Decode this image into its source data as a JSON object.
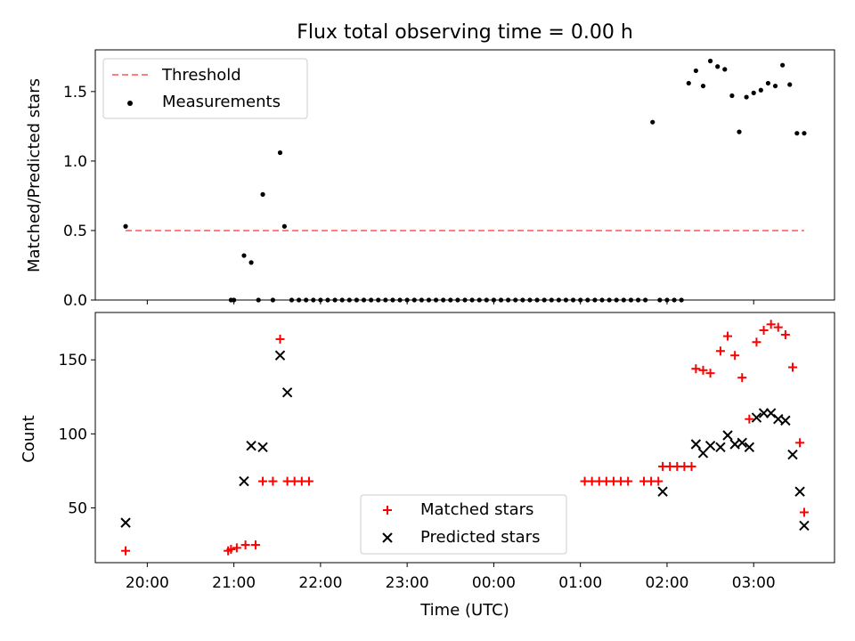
{
  "chart_data": [
    {
      "type": "scatter",
      "title": "Flux total observing time = 0.00 h",
      "xlabel": "",
      "ylabel": "Matched/Predicted stars",
      "ylim": [
        0,
        1.8
      ],
      "yticks": [
        0.0,
        0.5,
        1.0,
        1.5
      ],
      "ytick_labels": [
        "0.0",
        "0.5",
        "1.0",
        "1.5"
      ],
      "legend_position": "top-left",
      "series": [
        {
          "name": "Threshold",
          "kind": "line",
          "style": "dashed",
          "color": "#ff7f7f",
          "x": [
            "19:45",
            "03:35"
          ],
          "y": [
            0.5,
            0.5
          ]
        },
        {
          "name": "Measurements",
          "kind": "points",
          "color": "#000000",
          "x": [
            "19:45",
            "20:58",
            "21:00",
            "21:07",
            "21:12",
            "21:17",
            "21:20",
            "21:27",
            "21:32",
            "21:35",
            "21:40",
            "21:45",
            "21:50",
            "21:55",
            "22:00",
            "22:05",
            "22:10",
            "22:15",
            "22:20",
            "22:25",
            "22:30",
            "22:35",
            "22:40",
            "22:45",
            "22:50",
            "22:55",
            "23:00",
            "23:05",
            "23:10",
            "23:15",
            "23:20",
            "23:25",
            "23:30",
            "23:35",
            "23:40",
            "23:45",
            "23:50",
            "23:55",
            "00:00",
            "00:05",
            "00:10",
            "00:15",
            "00:20",
            "00:25",
            "00:30",
            "00:35",
            "00:40",
            "00:45",
            "00:50",
            "00:55",
            "01:00",
            "01:05",
            "01:10",
            "01:15",
            "01:20",
            "01:25",
            "01:30",
            "01:35",
            "01:40",
            "01:45",
            "01:50",
            "01:55",
            "02:00",
            "02:05",
            "02:10",
            "02:15",
            "02:20",
            "02:25",
            "02:30",
            "02:35",
            "02:40",
            "02:45",
            "02:50",
            "02:55",
            "03:00",
            "03:05",
            "03:10",
            "03:15",
            "03:20",
            "03:25",
            "03:30",
            "03:35"
          ],
          "y": [
            0.53,
            0.0,
            0.0,
            0.32,
            0.27,
            0.0,
            0.76,
            0.0,
            1.06,
            0.53,
            0.0,
            0.0,
            0.0,
            0.0,
            0.0,
            0.0,
            0.0,
            0.0,
            0.0,
            0.0,
            0.0,
            0.0,
            0.0,
            0.0,
            0.0,
            0.0,
            0.0,
            0.0,
            0.0,
            0.0,
            0.0,
            0.0,
            0.0,
            0.0,
            0.0,
            0.0,
            0.0,
            0.0,
            0.0,
            0.0,
            0.0,
            0.0,
            0.0,
            0.0,
            0.0,
            0.0,
            0.0,
            0.0,
            0.0,
            0.0,
            0.0,
            0.0,
            0.0,
            0.0,
            0.0,
            0.0,
            0.0,
            0.0,
            0.0,
            0.0,
            1.28,
            0.0,
            0.0,
            0.0,
            0.0,
            1.56,
            1.65,
            1.54,
            1.72,
            1.68,
            1.66,
            1.47,
            1.21,
            1.46,
            1.49,
            1.51,
            1.56,
            1.54,
            1.69,
            1.55,
            1.2,
            1.2
          ]
        }
      ]
    },
    {
      "type": "scatter",
      "title": "",
      "xlabel": "Time (UTC)",
      "ylabel": "Count",
      "ylim": [
        13,
        182
      ],
      "yticks": [
        50,
        100,
        150
      ],
      "ytick_labels": [
        "50",
        "100",
        "150"
      ],
      "xticks": [
        "20:00",
        "21:00",
        "22:00",
        "23:00",
        "00:00",
        "01:00",
        "02:00",
        "03:00"
      ],
      "legend_position": "bottom-center",
      "series": [
        {
          "name": "Matched stars",
          "marker": "+",
          "color": "#ff0000",
          "x": [
            "19:45",
            "20:56",
            "20:58",
            "21:02",
            "21:08",
            "21:15",
            "21:20",
            "21:27",
            "21:32",
            "21:37",
            "21:42",
            "21:47",
            "21:52",
            "01:03",
            "01:08",
            "01:13",
            "01:18",
            "01:23",
            "01:28",
            "01:33",
            "01:44",
            "01:49",
            "01:54",
            "01:57",
            "02:02",
            "02:07",
            "02:12",
            "02:17",
            "02:20",
            "02:25",
            "02:30",
            "02:37",
            "02:42",
            "02:47",
            "02:52",
            "02:57",
            "03:02",
            "03:07",
            "03:12",
            "03:17",
            "03:22",
            "03:27",
            "03:32",
            "03:35"
          ],
          "y": [
            21,
            21,
            22,
            23,
            25,
            25,
            68,
            68,
            164,
            68,
            68,
            68,
            68,
            68,
            68,
            68,
            68,
            68,
            68,
            68,
            68,
            68,
            68,
            78,
            78,
            78,
            78,
            78,
            144,
            143,
            141,
            156,
            166,
            153,
            138,
            110,
            162,
            170,
            174,
            172,
            167,
            145,
            94,
            47
          ]
        },
        {
          "name": "Predicted stars",
          "marker": "x",
          "color": "#000000",
          "x": [
            "19:45",
            "21:07",
            "21:12",
            "21:20",
            "21:32",
            "21:37",
            "01:57",
            "02:20",
            "02:25",
            "02:30",
            "02:37",
            "02:42",
            "02:47",
            "02:52",
            "02:57",
            "03:02",
            "03:07",
            "03:12",
            "03:17",
            "03:22",
            "03:27",
            "03:32",
            "03:35"
          ],
          "y": [
            40,
            68,
            92,
            91,
            153,
            128,
            61,
            93,
            87,
            92,
            91,
            99,
            93,
            94,
            91,
            111,
            114,
            114,
            110,
            109,
            86,
            61,
            38
          ]
        }
      ]
    }
  ]
}
